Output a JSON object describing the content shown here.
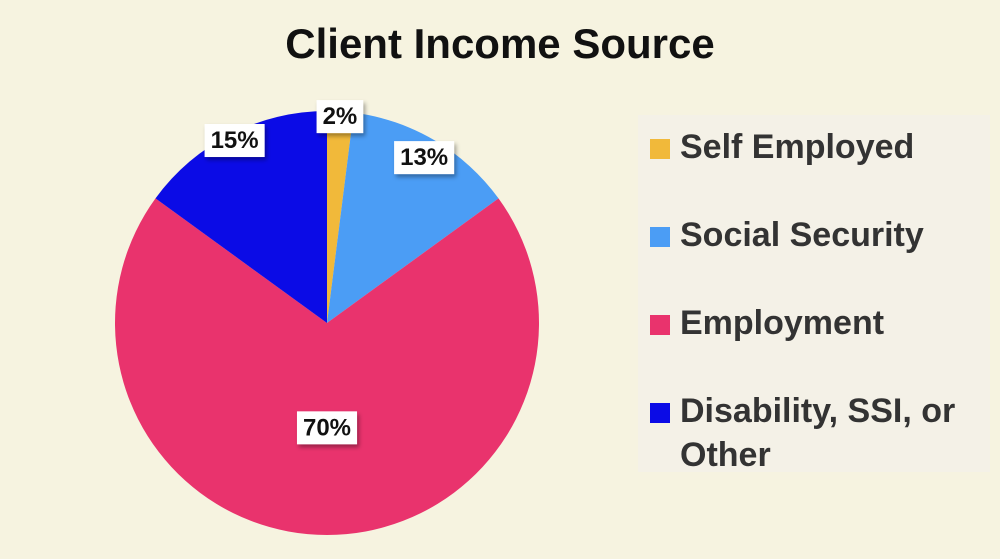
{
  "chart_data": {
    "type": "pie",
    "title": "Client Income Source",
    "categories": [
      "Self Employed",
      "Social Security",
      "Employment",
      "Disability, SSI, or Other"
    ],
    "values": [
      2,
      13,
      70,
      15
    ],
    "value_labels": [
      "2%",
      "13%",
      "70%",
      "15%"
    ],
    "colors": [
      "#f1b93a",
      "#4b9df5",
      "#e9336d",
      "#0b0be6"
    ],
    "legend": "right"
  }
}
